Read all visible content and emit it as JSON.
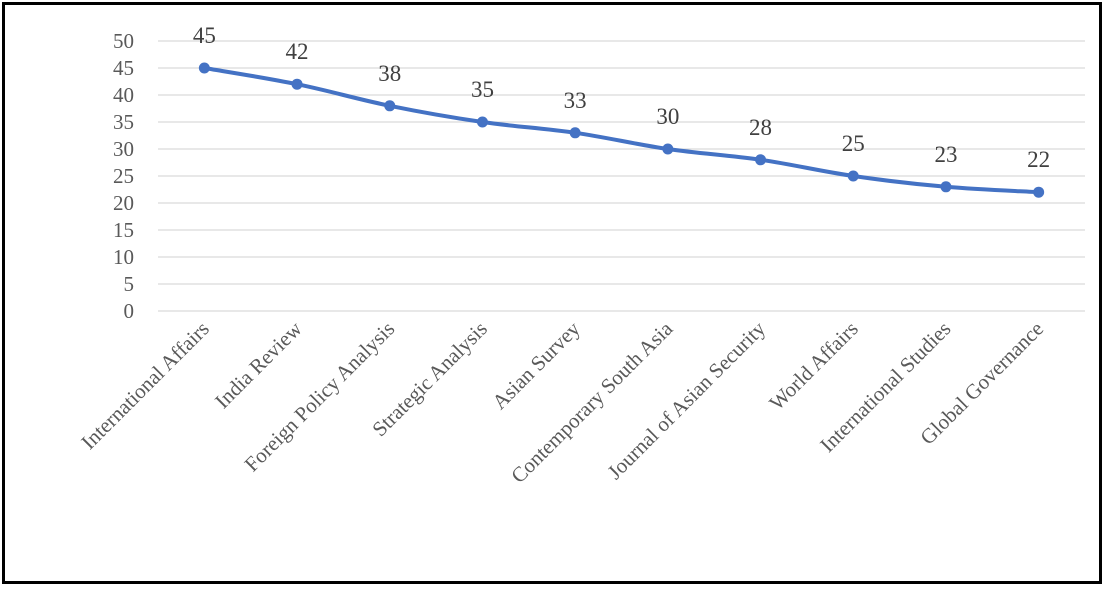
{
  "chart_data": {
    "type": "line",
    "categories": [
      "International Affairs",
      "India Review",
      "Foreign Policy Analysis",
      "Strategic Analysis",
      "Asian Survey",
      "Contemporary South Asia",
      "Journal of Asian Security",
      "World Affairs",
      "International Studies",
      "Global Governance"
    ],
    "series": [
      {
        "values": [
          45,
          42,
          38,
          35,
          33,
          30,
          28,
          25,
          23,
          22
        ]
      }
    ],
    "data_labels": [
      "45",
      "42",
      "38",
      "35",
      "33",
      "30",
      "28",
      "25",
      "23",
      "22"
    ],
    "y_ticks": [
      "0",
      "5",
      "10",
      "15",
      "20",
      "25",
      "30",
      "35",
      "40",
      "45",
      "50"
    ],
    "ylim": [
      0,
      50
    ],
    "grid": true,
    "legend": "none",
    "colors": {
      "line": "#4472c4",
      "grid": "#d9d9d9",
      "text": "#595959"
    }
  }
}
